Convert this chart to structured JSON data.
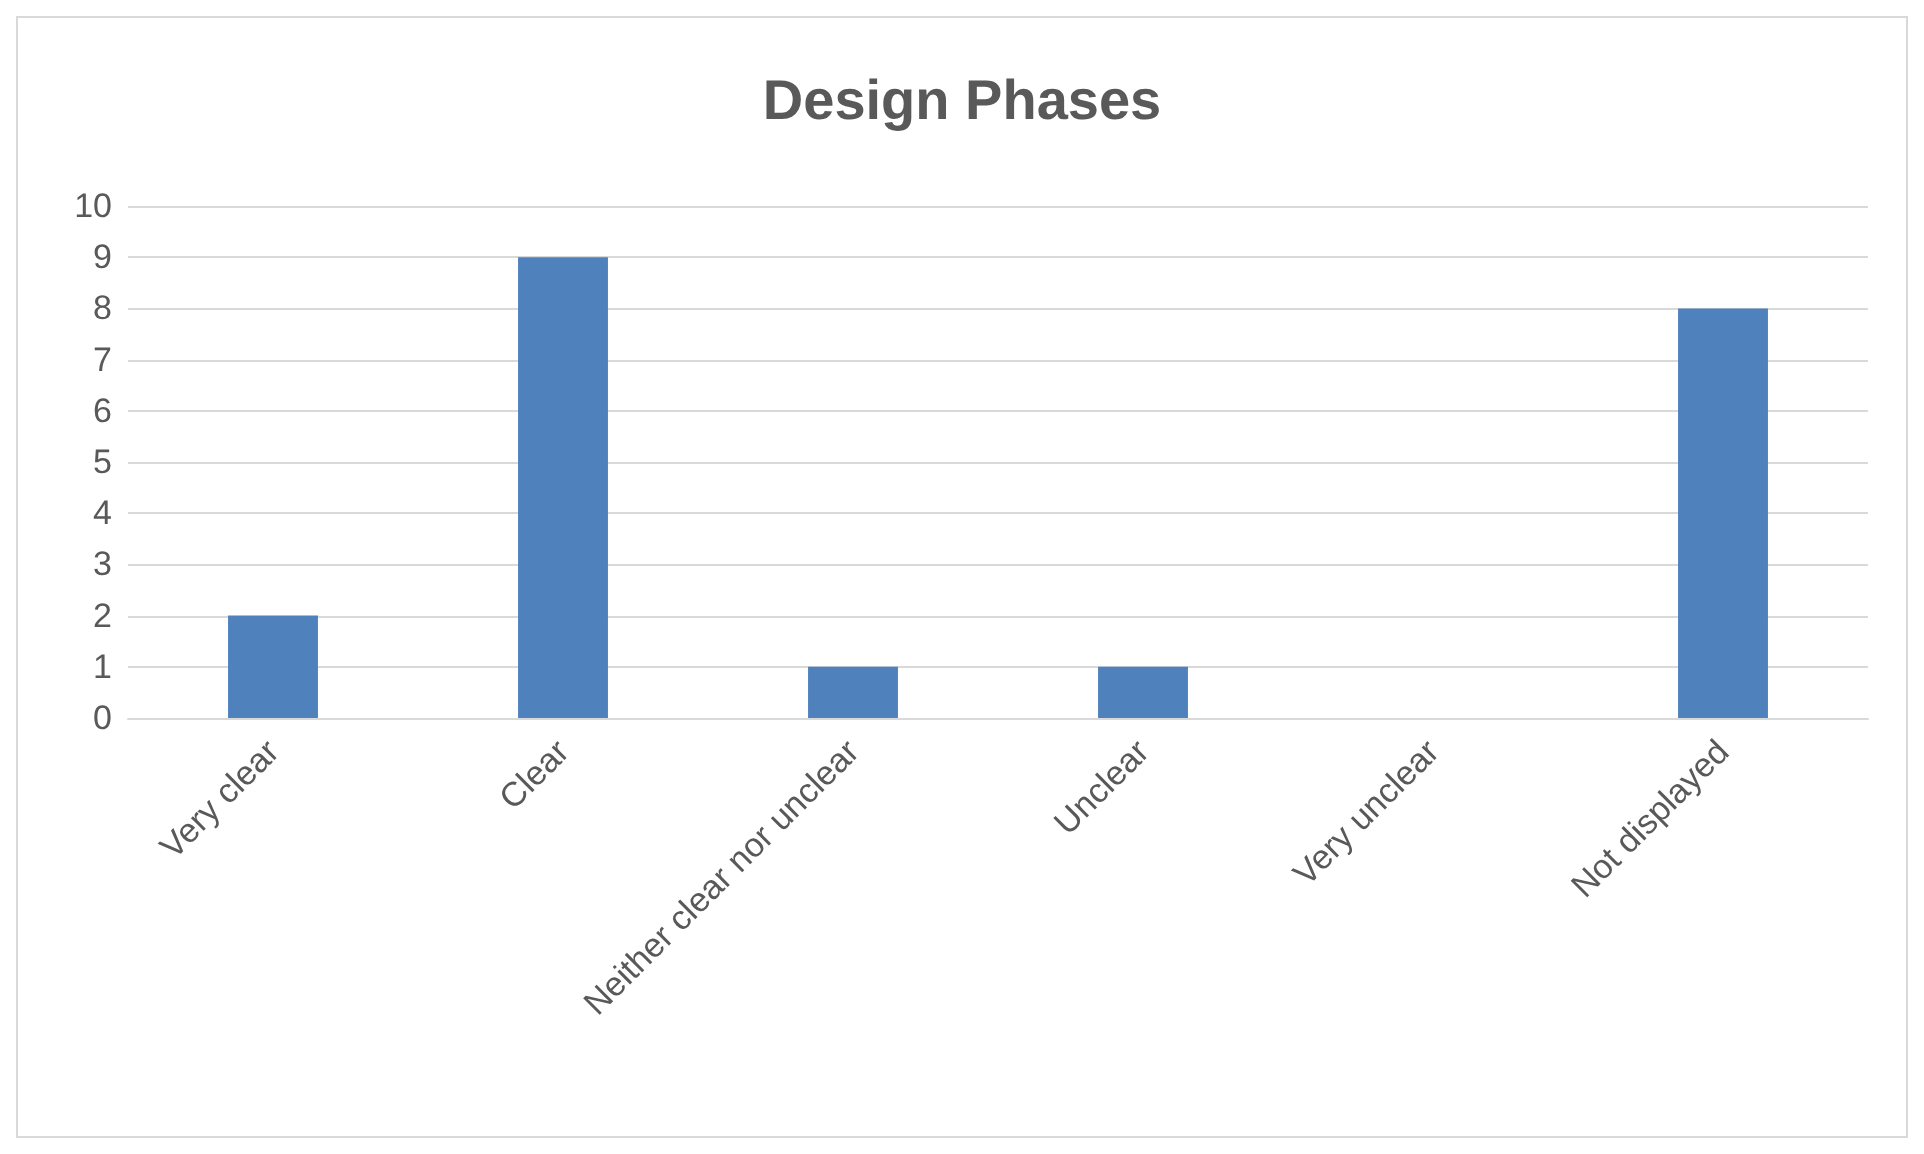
{
  "chart_data": {
    "type": "bar",
    "title": "Design Phases",
    "categories": [
      "Very clear",
      "Clear",
      "Neither clear nor unclear",
      "Unclear",
      "Very unclear",
      "Not displayed"
    ],
    "values": [
      2,
      9,
      1,
      1,
      0,
      8
    ],
    "color": "#4f81bd",
    "ylim": [
      0,
      10
    ],
    "yticks": [
      0,
      1,
      2,
      3,
      4,
      5,
      6,
      7,
      8,
      9,
      10
    ],
    "grid": "y"
  }
}
